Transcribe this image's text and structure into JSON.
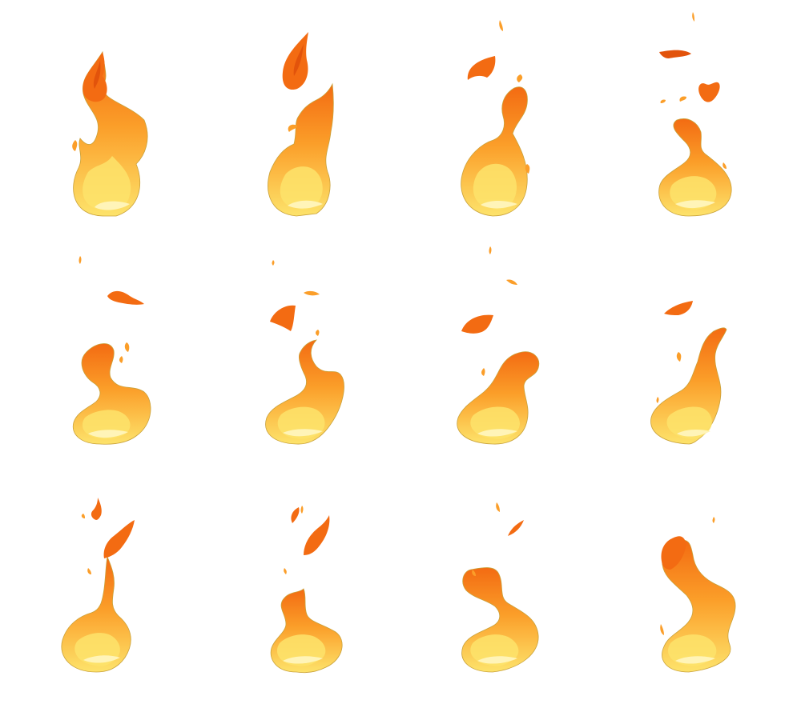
{
  "sprite_sheet": {
    "grid": {
      "rows": 3,
      "columns": 4
    },
    "palette": {
      "base_deep": "#fb9e29",
      "base_hot": "#fde36b",
      "core_light": "#fff4b8",
      "outline": "#c9a13a",
      "tip_red": "#f36b12",
      "tip_dark": "#e2530b"
    },
    "frames": [
      {
        "id": 1
      },
      {
        "id": 2
      },
      {
        "id": 3
      },
      {
        "id": 4
      },
      {
        "id": 5
      },
      {
        "id": 6
      },
      {
        "id": 7
      },
      {
        "id": 8
      },
      {
        "id": 9
      },
      {
        "id": 10
      },
      {
        "id": 11
      },
      {
        "id": 12
      }
    ]
  }
}
